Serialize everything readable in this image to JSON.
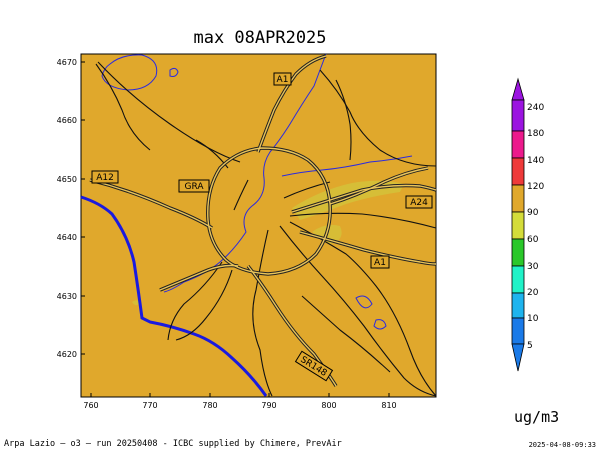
{
  "title": "max 08APR2025",
  "units": "ug/m3",
  "footer": "Arpa Lazio — o3 — run 20250408 - ICBC supplied by Chimere, PrevAir",
  "timestamp": "2025-04-08-09:33",
  "map": {
    "background_color": "#e0a82c",
    "coast_color": "#1a1adf",
    "x_ticks": [
      "760",
      "770",
      "780",
      "790",
      "800",
      "810"
    ],
    "y_ticks": [
      "4670",
      "4660",
      "4650",
      "4640",
      "4630",
      "4620"
    ],
    "road_labels": [
      "A1",
      "A12",
      "GRA",
      "A24",
      "A1",
      "SR148"
    ]
  },
  "colorbar": {
    "levels": [
      "240",
      "180",
      "140",
      "120",
      "90",
      "60",
      "30",
      "20",
      "10",
      "5"
    ],
    "colors": [
      "#9b14e0",
      "#ec1a8c",
      "#ee3a3a",
      "#e0a82c",
      "#d4dc3a",
      "#2ac82a",
      "#20f2c8",
      "#1eb4ee",
      "#1a7ae8",
      "#1a7ae8"
    ]
  }
}
